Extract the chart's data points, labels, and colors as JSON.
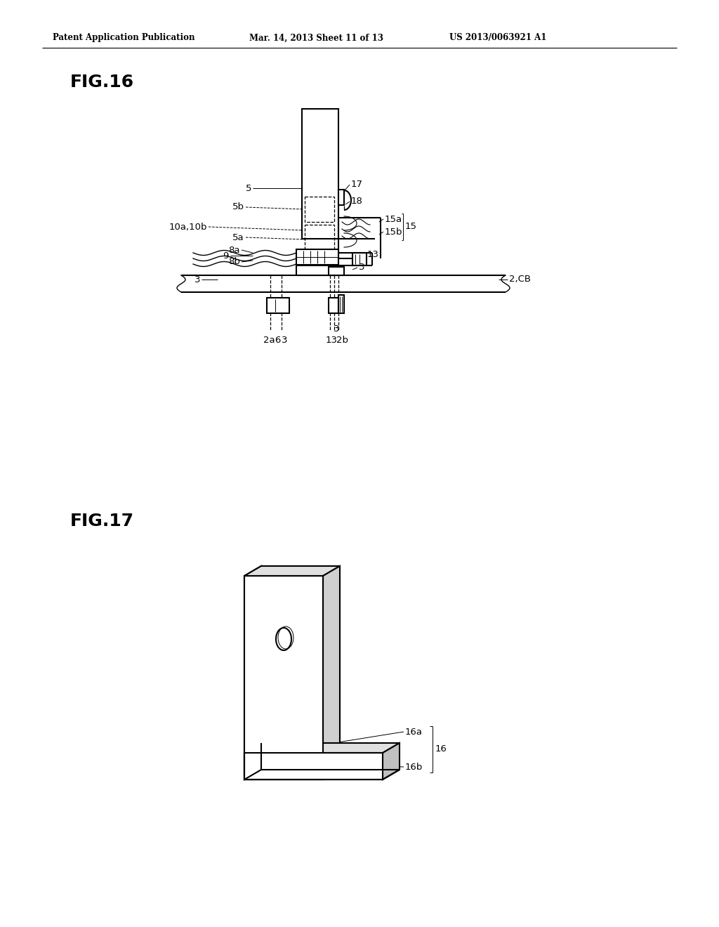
{
  "background_color": "#ffffff",
  "header_text": "Patent Application Publication",
  "header_date": "Mar. 14, 2013 Sheet 11 of 13",
  "header_patent": "US 2013/0063921 A1",
  "fig16_label": "FIG.16",
  "fig17_label": "FIG.17",
  "lw_main": 1.5,
  "lw_thin": 0.9,
  "lw_label": 0.7,
  "fs_label": 9.5,
  "fs_fig": 18
}
